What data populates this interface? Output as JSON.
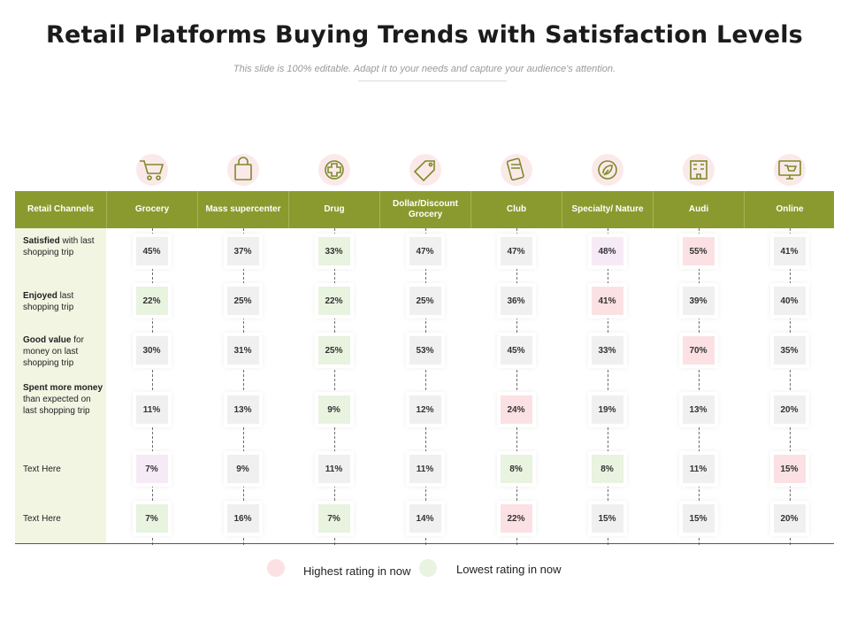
{
  "title": "Retail Platforms Buying Trends with Satisfaction Levels",
  "subtitle": "This slide is 100% editable. Adapt it to your needs and capture your audience's attention.",
  "colors": {
    "header_bg": "#8b9a2e",
    "first_col_bg": "#f3f5e3",
    "highlight": "#fbe1e4",
    "lowest": "#e8f3e0",
    "alt": "#f7eaf7",
    "neutral": "#f0f0f0"
  },
  "table": {
    "header_first": "Retail Channels",
    "columns": [
      {
        "label": "Grocery",
        "icon": "shopping-cart-icon"
      },
      {
        "label": "Mass supercenter",
        "icon": "shopping-bag-icon"
      },
      {
        "label": "Drug",
        "icon": "medical-cross-icon"
      },
      {
        "label": "Dollar/Discount Grocery",
        "icon": "sale-tag-icon"
      },
      {
        "label": "Club",
        "icon": "card-icon"
      },
      {
        "label": "Specialty/ Nature",
        "icon": "nature-leaf-icon"
      },
      {
        "label": "Audi",
        "icon": "building-icon"
      },
      {
        "label": "Online",
        "icon": "computer-cart-icon"
      }
    ],
    "rows": [
      {
        "bold": "Satisfied",
        "rest": " with last shopping trip",
        "values": [
          "45%",
          "37%",
          "33%",
          "47%",
          "47%",
          "48%",
          "55%",
          "41%"
        ],
        "states": [
          "neutral",
          "neutral",
          "lowest",
          "neutral",
          "neutral",
          "alt",
          "highlight",
          "neutral"
        ]
      },
      {
        "bold": "Enjoyed",
        "rest": " last shopping trip",
        "values": [
          "22%",
          "25%",
          "22%",
          "25%",
          "36%",
          "41%",
          "39%",
          "40%"
        ],
        "states": [
          "lowest",
          "neutral",
          "lowest",
          "neutral",
          "neutral",
          "highlight",
          "neutral",
          "neutral"
        ]
      },
      {
        "bold": "Good value",
        "rest": " for money on last shopping trip",
        "values": [
          "30%",
          "31%",
          "25%",
          "53%",
          "45%",
          "33%",
          "70%",
          "35%"
        ],
        "states": [
          "neutral",
          "neutral",
          "lowest",
          "neutral",
          "neutral",
          "neutral",
          "highlight",
          "neutral"
        ]
      },
      {
        "bold": "Spent more money",
        "rest": " than expected on last shopping trip",
        "values": [
          "11%",
          "13%",
          "9%",
          "12%",
          "24%",
          "19%",
          "13%",
          "20%"
        ],
        "states": [
          "neutral",
          "neutral",
          "lowest",
          "neutral",
          "highlight",
          "neutral",
          "neutral",
          "neutral"
        ]
      },
      {
        "bold": "",
        "rest": "Text Here",
        "values": [
          "7%",
          "9%",
          "11%",
          "11%",
          "8%",
          "8%",
          "11%",
          "15%"
        ],
        "states": [
          "alt",
          "neutral",
          "neutral",
          "neutral",
          "lowest",
          "lowest",
          "neutral",
          "highlight"
        ]
      },
      {
        "bold": "",
        "rest": "Text Here",
        "values": [
          "7%",
          "16%",
          "7%",
          "14%",
          "22%",
          "15%",
          "15%",
          "20%"
        ],
        "states": [
          "lowest",
          "neutral",
          "lowest",
          "neutral",
          "highlight",
          "neutral",
          "neutral",
          "neutral"
        ]
      }
    ]
  },
  "legend": {
    "highest": "Highest rating in now",
    "lowest": "Lowest rating in now"
  }
}
